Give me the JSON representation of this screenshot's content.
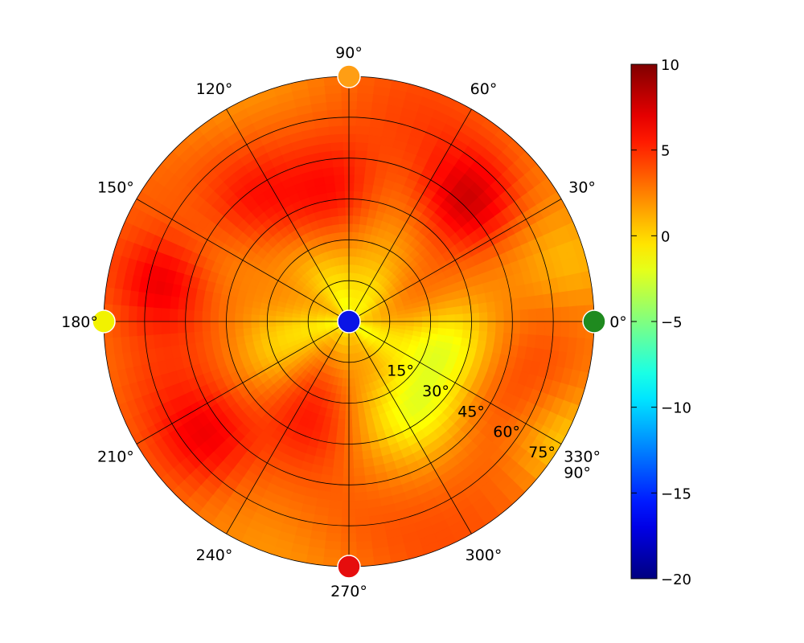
{
  "chart_data": {
    "type": "heatmap",
    "projection": "polar",
    "title": "",
    "colormap": "jet",
    "angular_axis": {
      "unit": "degrees",
      "direction": "counterclockwise",
      "zero_location": "east",
      "ticks": [
        0,
        30,
        60,
        90,
        120,
        150,
        180,
        210,
        240,
        270,
        300,
        330
      ],
      "tick_labels": [
        "0°",
        "30°",
        "60°",
        "90°",
        "120°",
        "150°",
        "180°",
        "210°",
        "240°",
        "270°",
        "300°",
        "330°"
      ]
    },
    "radial_axis": {
      "range": [
        0,
        90
      ],
      "ticks": [
        15,
        30,
        45,
        60,
        75,
        90
      ],
      "tick_labels": [
        "15°",
        "30°",
        "45°",
        "60°",
        "75°",
        "90°"
      ],
      "label_angle_deg": 330
    },
    "colorbar": {
      "range": [
        -20,
        10
      ],
      "ticks": [
        10,
        5,
        0,
        -5,
        -10,
        -15,
        -20
      ],
      "tick_labels": [
        "10",
        "5",
        "0",
        "−5",
        "−10",
        "−15",
        "−20"
      ]
    },
    "markers": [
      {
        "azimuth": 0,
        "radius": 0,
        "value": -18,
        "color": "#0a14e6"
      },
      {
        "azimuth": 0,
        "radius": 90,
        "value": -5,
        "color": "#1f8a1f"
      },
      {
        "azimuth": 90,
        "radius": 90,
        "value": 2,
        "color": "#ff9e14"
      },
      {
        "azimuth": 180,
        "radius": 90,
        "value": 0,
        "color": "#f2f200"
      },
      {
        "azimuth": 270,
        "radius": 90,
        "value": 8,
        "color": "#e60d0d"
      }
    ],
    "field": {
      "description_units": "azimuth deg, radius deg, value",
      "base_value": 3.2,
      "hotspots": [
        {
          "azimuth": 45,
          "radius": 62,
          "value": 7.5
        },
        {
          "azimuth": 168,
          "radius": 70,
          "value": 7.0
        },
        {
          "azimuth": 220,
          "radius": 66,
          "value": 6.0
        },
        {
          "azimuth": 95,
          "radius": 50,
          "value": 5.5
        },
        {
          "azimuth": 250,
          "radius": 40,
          "value": 5.0
        },
        {
          "azimuth": 130,
          "radius": 55,
          "value": 5.5
        }
      ],
      "cool_spots": [
        {
          "azimuth": 0,
          "radius": 5,
          "value": 0.0
        },
        {
          "azimuth": 345,
          "radius": 38,
          "value": -1.0
        },
        {
          "azimuth": 310,
          "radius": 40,
          "value": -1.0
        },
        {
          "azimuth": 330,
          "radius": 88,
          "value": 1.0
        },
        {
          "azimuth": 200,
          "radius": 25,
          "value": 1.0
        },
        {
          "azimuth": 110,
          "radius": 20,
          "value": 0.5
        },
        {
          "azimuth": 15,
          "radius": 85,
          "value": 1.5
        }
      ]
    }
  }
}
